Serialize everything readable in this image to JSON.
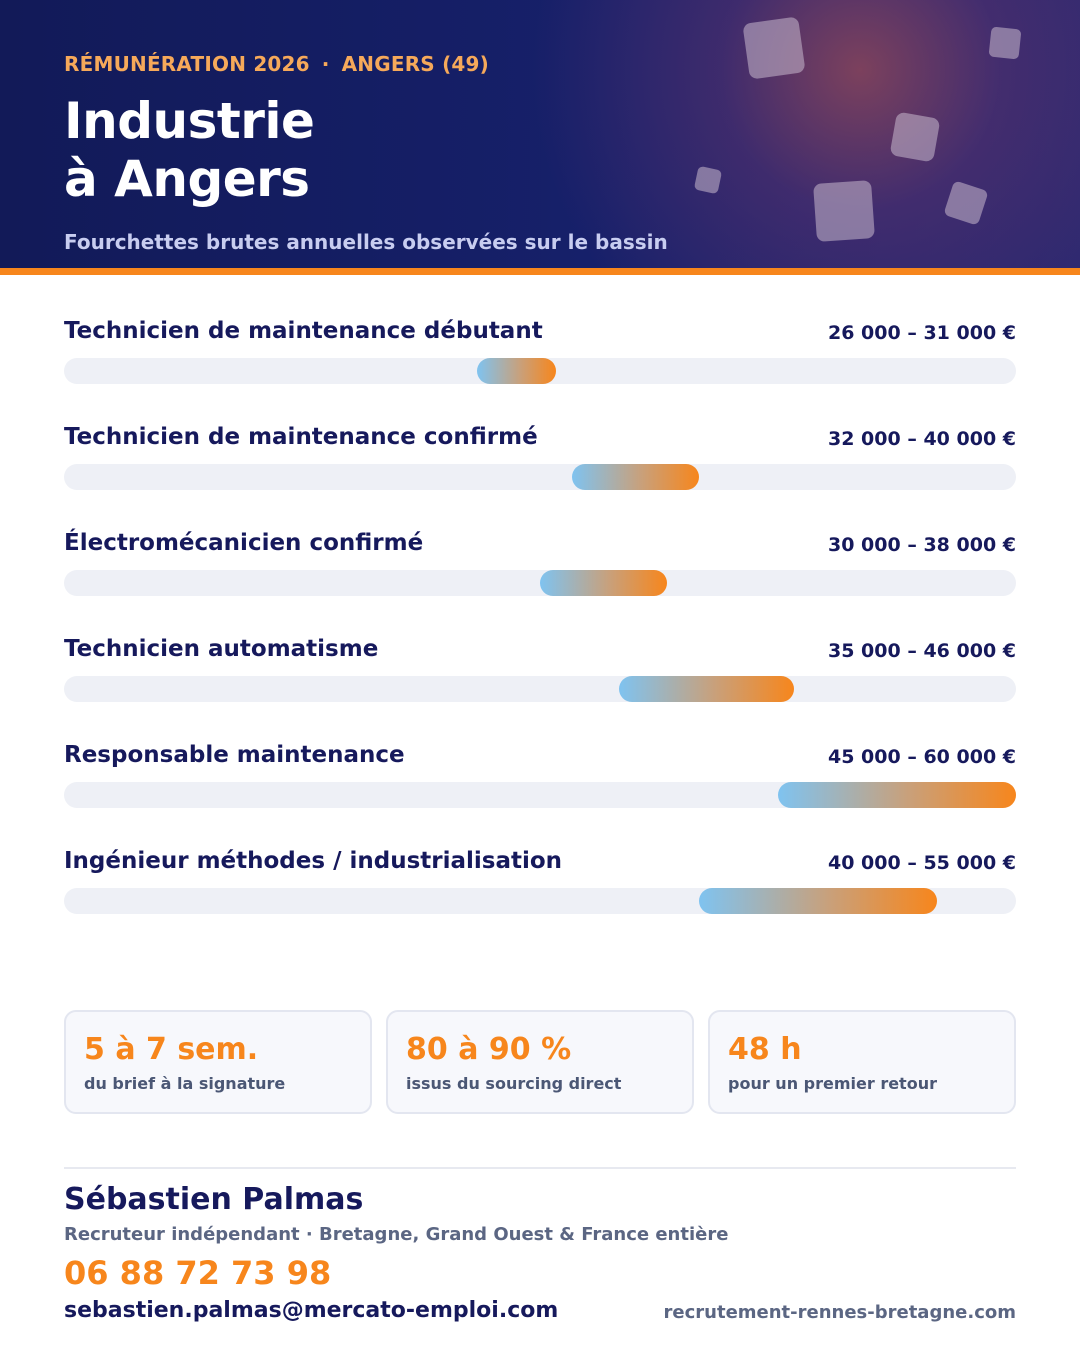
{
  "header": {
    "kicker_left": "RÉMUNÉRATION 2026",
    "kicker_sep": "·",
    "kicker_right": "ANGERS (49)",
    "title_line1": "Industrie",
    "title_line2": "à Angers",
    "subtitle": "Fourchettes brutes annuelles observées sur le bassin"
  },
  "colors": {
    "navy": "#16195c",
    "accent": "#f7861c",
    "bar_start": "#7fc3f0",
    "bar_end": "#f7861c",
    "track": "#eef0f6"
  },
  "scale": {
    "min": 0,
    "max": 60000
  },
  "salaries": [
    {
      "label": "Technicien de maintenance débutant",
      "range_label": "26 000 – 31 000 €",
      "min": 26000,
      "max": 31000
    },
    {
      "label": "Technicien de maintenance confirmé",
      "range_label": "32 000 – 40 000 €",
      "min": 32000,
      "max": 40000
    },
    {
      "label": "Électromécanicien confirmé",
      "range_label": "30 000 – 38 000 €",
      "min": 30000,
      "max": 38000
    },
    {
      "label": "Technicien automatisme",
      "range_label": "35 000 – 46 000 €",
      "min": 35000,
      "max": 46000
    },
    {
      "label": "Responsable maintenance",
      "range_label": "45 000 – 60 000 €",
      "min": 45000,
      "max": 60000
    },
    {
      "label": "Ingénieur méthodes / industrialisation",
      "range_label": "40 000 – 55 000 €",
      "min": 40000,
      "max": 55000
    }
  ],
  "stats": [
    {
      "value": "5 à 7 sem.",
      "desc": "du brief à la signature"
    },
    {
      "value": "80 à 90 %",
      "desc": "issus du sourcing direct"
    },
    {
      "value": "48 h",
      "desc": "pour un premier retour"
    }
  ],
  "contact": {
    "name": "Sébastien Palmas",
    "role": "Recruteur indépendant · Bretagne, Grand Ouest & France entière",
    "phone": "06 88 72 73 98",
    "email": "sebastien.palmas@mercato-emploi.com",
    "website": "recrutement-rennes-bretagne.com"
  }
}
